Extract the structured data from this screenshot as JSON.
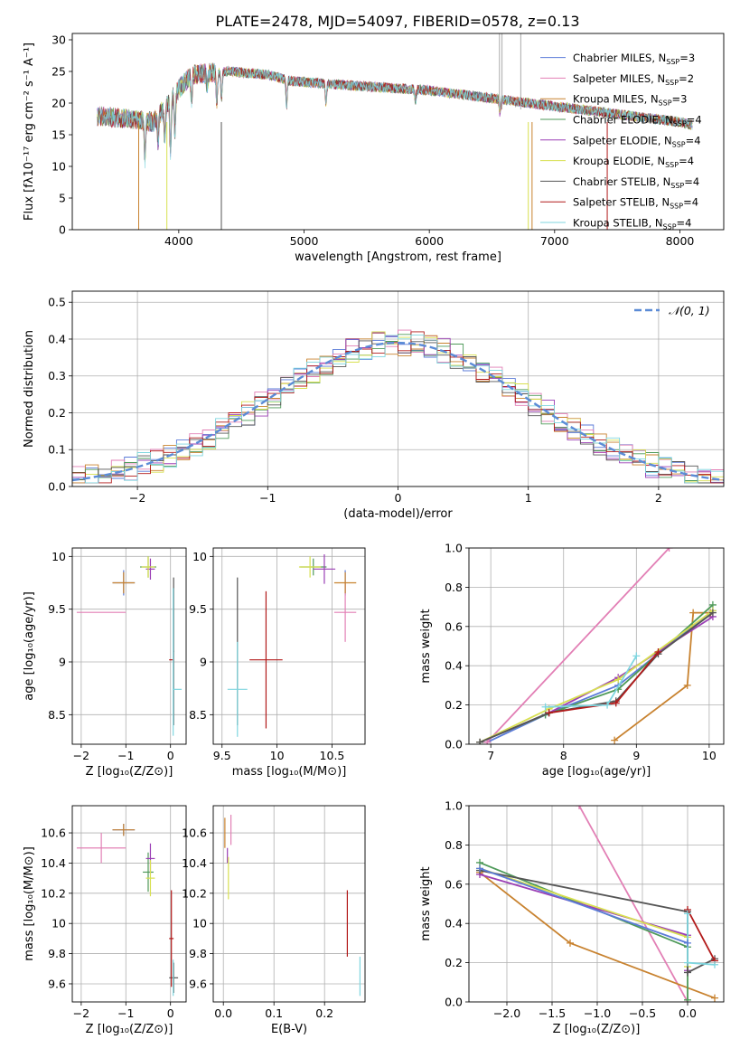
{
  "chart_data": [
    {
      "id": "spectrum",
      "type": "line",
      "title": "PLATE=2478, MJD=54097, FIBERID=0578, z=0.13",
      "xlabel": "wavelength [Angstrom, rest frame]",
      "ylabel": "Flux [fλ10⁻¹⁷ erg cm⁻² s⁻¹ A⁻¹]",
      "xlim": [
        3150,
        8350
      ],
      "ylim": [
        0,
        31
      ],
      "xticks": [
        4000,
        5000,
        6000,
        7000,
        8000
      ],
      "yticks": [
        0,
        5,
        10,
        15,
        20,
        25,
        30
      ],
      "grid": false,
      "legend": "right",
      "series": [
        {
          "name": "Chabrier MILES, N",
          "sub": "SSP",
          "suffix": "=3",
          "color": "#5b7bd8"
        },
        {
          "name": "Salpeter MILES, N",
          "sub": "SSP",
          "suffix": "=2",
          "color": "#e27fb5"
        },
        {
          "name": "Kroupa MILES, N",
          "sub": "SSP",
          "suffix": "=3",
          "color": "#c8822f"
        },
        {
          "name": "Chabrier ELODIE, N",
          "sub": "SSP",
          "suffix": "=4",
          "color": "#4f9a5a"
        },
        {
          "name": "Salpeter ELODIE, N",
          "sub": "SSP",
          "suffix": "=4",
          "color": "#9b3fb5"
        },
        {
          "name": "Kroupa ELODIE, N",
          "sub": "SSP",
          "suffix": "=4",
          "color": "#d8e050"
        },
        {
          "name": "Chabrier STELIB, N",
          "sub": "SSP",
          "suffix": "=4",
          "color": "#555555"
        },
        {
          "name": "Salpeter STELIB, N",
          "sub": "SSP",
          "suffix": "=4",
          "color": "#b21a1a"
        },
        {
          "name": "Kroupa STELIB, N",
          "sub": "SSP",
          "suffix": "=4",
          "color": "#7fd6df"
        }
      ],
      "data_envelope": {
        "x": [
          3350,
          3600,
          3800,
          3950,
          4100,
          4400,
          4700,
          4900,
          5200,
          5600,
          6000,
          6400,
          6800,
          7200,
          7600,
          8000,
          8100
        ],
        "y": [
          18,
          17.5,
          17,
          21,
          24.5,
          25,
          24.5,
          23.5,
          23,
          22.5,
          22,
          21,
          20,
          19,
          18,
          17,
          16.5
        ]
      }
    },
    {
      "id": "residuals",
      "type": "histogram",
      "xlabel": "(data-model)/error",
      "ylabel": "Normed distribution",
      "xlim": [
        -2.5,
        2.5
      ],
      "ylim": [
        0,
        0.53
      ],
      "xticks": [
        -2,
        -1,
        0,
        1,
        2
      ],
      "yticks": [
        0.0,
        0.1,
        0.2,
        0.3,
        0.4,
        0.5
      ],
      "grid": true,
      "legend": "top-right",
      "reference_curve": {
        "name": "𝒩(0, 1)",
        "color": "#5b8bd6",
        "mu": 0,
        "sigma": 1,
        "scale": 0.39
      },
      "bin_width": 0.1
    },
    {
      "id": "age-vs-Z",
      "type": "errorbar",
      "xlabel": "Z [log₁₀(Z/Z⊙)]",
      "ylabel": "age  [log₁₀(age/yr)]",
      "xlim": [
        -2.2,
        0.35
      ],
      "ylim": [
        8.22,
        10.08
      ],
      "xticks": [
        -2,
        -1,
        0
      ],
      "yticks": [
        8.5,
        9.0,
        9.5,
        10.0
      ],
      "grid": true,
      "points": [
        {
          "x": -1.05,
          "y": 9.75,
          "xerr": 0.25,
          "yerr": 0.12,
          "color": "#5b7bd8"
        },
        {
          "x": -1.55,
          "y": 9.47,
          "xerr": 0.55,
          "yerr": 0.0,
          "color": "#e27fb5"
        },
        {
          "x": -1.05,
          "y": 9.75,
          "xerr": 0.25,
          "yerr": 0.1,
          "color": "#c8822f"
        },
        {
          "x": -0.5,
          "y": 9.9,
          "xerr": 0.18,
          "yerr": 0.1,
          "color": "#4f9a5a"
        },
        {
          "x": -0.45,
          "y": 9.88,
          "xerr": 0.1,
          "yerr": 0.1,
          "color": "#9b3fb5"
        },
        {
          "x": -0.5,
          "y": 9.9,
          "xerr": 0.15,
          "yerr": 0.1,
          "color": "#d8e050"
        },
        {
          "x": 0.07,
          "y": 9.1,
          "xerr": 0.01,
          "yerr": 0.7,
          "color": "#555555"
        },
        {
          "x": 0.02,
          "y": 9.02,
          "xerr": 0.05,
          "yerr": 0.0,
          "color": "#b21a1a"
        },
        {
          "x": 0.15,
          "y": 8.74,
          "xerr": 0.1,
          "yerr": 0.0,
          "color": "#7fd6df"
        },
        {
          "x": 0.06,
          "y": 9.0,
          "xerr": 0.0,
          "yerr": 0.7,
          "color": "#7fd6df"
        }
      ]
    },
    {
      "id": "age-vs-mass",
      "type": "errorbar",
      "xlabel": "mass [log₁₀(M/M⊙)]",
      "ylabel": "",
      "xlim": [
        9.42,
        10.8
      ],
      "ylim": [
        8.22,
        10.08
      ],
      "xticks": [
        9.5,
        10.0,
        10.5
      ],
      "yticks": [
        8.5,
        9.0,
        9.5,
        10.0
      ],
      "grid": true,
      "points": [
        {
          "x": 10.62,
          "y": 9.75,
          "xerr": 0.0,
          "yerr": 0.12,
          "color": "#5b7bd8"
        },
        {
          "x": 10.62,
          "y": 9.47,
          "xerr": 0.1,
          "yerr": 0.28,
          "color": "#e27fb5"
        },
        {
          "x": 10.62,
          "y": 9.75,
          "xerr": 0.1,
          "yerr": 0.1,
          "color": "#c8822f"
        },
        {
          "x": 10.33,
          "y": 9.9,
          "xerr": 0.12,
          "yerr": 0.08,
          "color": "#4f9a5a"
        },
        {
          "x": 10.43,
          "y": 9.88,
          "xerr": 0.1,
          "yerr": 0.14,
          "color": "#9b3fb5"
        },
        {
          "x": 10.3,
          "y": 9.9,
          "xerr": 0.1,
          "yerr": 0.1,
          "color": "#d8e050"
        },
        {
          "x": 9.64,
          "y": 9.1,
          "xerr": 0.0,
          "yerr": 0.7,
          "color": "#555555"
        },
        {
          "x": 9.9,
          "y": 9.02,
          "xerr": 0.15,
          "yerr": 0.65,
          "color": "#b21a1a"
        },
        {
          "x": 9.64,
          "y": 8.74,
          "xerr": 0.09,
          "yerr": 0.45,
          "color": "#7fd6df"
        }
      ]
    },
    {
      "id": "weight-vs-age",
      "type": "line",
      "xlabel": "age  [log₁₀(age/yr)]",
      "ylabel": "mass weight",
      "xlim": [
        6.7,
        10.2
      ],
      "ylim": [
        0,
        1
      ],
      "xticks": [
        7,
        8,
        9,
        10
      ],
      "yticks": [
        0.0,
        0.2,
        0.4,
        0.6,
        0.8,
        1.0
      ],
      "grid": true,
      "series": [
        {
          "color": "#5b7bd8",
          "x": [
            6.95,
            7.75,
            8.75,
            10.05
          ],
          "y": [
            0.01,
            0.15,
            0.3,
            0.68
          ]
        },
        {
          "color": "#e27fb5",
          "x": [
            6.95,
            9.45
          ],
          "y": [
            0.01,
            1.0
          ]
        },
        {
          "color": "#c8822f",
          "x": [
            8.7,
            9.7,
            9.78,
            10.02
          ],
          "y": [
            0.02,
            0.3,
            0.67,
            0.67
          ]
        },
        {
          "color": "#4f9a5a",
          "x": [
            6.85,
            7.75,
            8.75,
            10.05
          ],
          "y": [
            0.01,
            0.15,
            0.28,
            0.71
          ]
        },
        {
          "color": "#9b3fb5",
          "x": [
            6.85,
            7.8,
            8.75,
            10.05
          ],
          "y": [
            0.01,
            0.16,
            0.34,
            0.65
          ]
        },
        {
          "color": "#d8e050",
          "x": [
            6.85,
            7.8,
            8.75,
            10.05
          ],
          "y": [
            0.01,
            0.18,
            0.33,
            0.68
          ]
        },
        {
          "color": "#555555",
          "x": [
            6.85,
            7.8,
            8.72,
            9.3,
            10.05
          ],
          "y": [
            0.01,
            0.16,
            0.22,
            0.46,
            0.67
          ]
        },
        {
          "color": "#b21a1a",
          "x": [
            7.8,
            8.72,
            9.3
          ],
          "y": [
            0.16,
            0.21,
            0.47
          ]
        },
        {
          "color": "#7fd6df",
          "x": [
            7.75,
            8.6,
            9.0
          ],
          "y": [
            0.19,
            0.2,
            0.45
          ]
        }
      ]
    },
    {
      "id": "mass-vs-Z",
      "type": "errorbar",
      "xlabel": "Z [log₁₀(Z/Z⊙)]",
      "ylabel": "mass [log₁₀(M/M⊙)]",
      "xlim": [
        -2.2,
        0.35
      ],
      "ylim": [
        9.48,
        10.78
      ],
      "xticks": [
        -2,
        -1,
        0
      ],
      "yticks": [
        9.6,
        9.8,
        10.0,
        10.2,
        10.4,
        10.6
      ],
      "grid": true,
      "points": [
        {
          "x": -1.05,
          "y": 10.62,
          "xerr": 0.25,
          "yerr": 0.04,
          "color": "#5b7bd8"
        },
        {
          "x": -1.55,
          "y": 10.5,
          "xerr": 0.55,
          "yerr": 0.1,
          "color": "#e27fb5"
        },
        {
          "x": -1.05,
          "y": 10.62,
          "xerr": 0.25,
          "yerr": 0.04,
          "color": "#c8822f"
        },
        {
          "x": -0.5,
          "y": 10.34,
          "xerr": 0.12,
          "yerr": 0.13,
          "color": "#4f9a5a"
        },
        {
          "x": -0.45,
          "y": 10.43,
          "xerr": 0.1,
          "yerr": 0.1,
          "color": "#9b3fb5"
        },
        {
          "x": -0.45,
          "y": 10.3,
          "xerr": 0.1,
          "yerr": 0.12,
          "color": "#d8e050"
        },
        {
          "x": 0.07,
          "y": 9.64,
          "xerr": 0.1,
          "yerr": 0.1,
          "color": "#555555"
        },
        {
          "x": 0.02,
          "y": 9.9,
          "xerr": 0.05,
          "yerr": 0.32,
          "color": "#b21a1a"
        },
        {
          "x": 0.06,
          "y": 9.64,
          "xerr": 0.0,
          "yerr": 0.12,
          "color": "#7fd6df"
        }
      ]
    },
    {
      "id": "mass-vs-EBV",
      "type": "errorbar",
      "xlabel": "E(B-V)",
      "ylabel": "",
      "xlim": [
        -0.02,
        0.28
      ],
      "ylim": [
        9.48,
        10.78
      ],
      "xticks": [
        0.0,
        0.1,
        0.2
      ],
      "yticks": [
        9.6,
        9.8,
        10.0,
        10.2,
        10.4,
        10.6
      ],
      "grid": true,
      "points": [
        {
          "x": 0.003,
          "y": 10.6,
          "xerr": 0.0,
          "yerr": 0.1,
          "color": "#c8822f"
        },
        {
          "x": 0.015,
          "y": 10.62,
          "xerr": 0.0,
          "yerr": 0.1,
          "color": "#e27fb5"
        },
        {
          "x": 0.008,
          "y": 10.45,
          "xerr": 0.0,
          "yerr": 0.05,
          "color": "#9b3fb5"
        },
        {
          "x": 0.01,
          "y": 10.3,
          "xerr": 0.0,
          "yerr": 0.14,
          "color": "#d8e050"
        },
        {
          "x": 0.245,
          "y": 10.0,
          "xerr": 0.0,
          "yerr": 0.22,
          "color": "#b21a1a"
        },
        {
          "x": 0.27,
          "y": 9.65,
          "xerr": 0.0,
          "yerr": 0.13,
          "color": "#7fd6df"
        }
      ]
    },
    {
      "id": "weight-vs-Z",
      "type": "line",
      "xlabel": "Z [log₁₀(Z/Z⊙)]",
      "ylabel": "mass weight",
      "xlim": [
        -2.42,
        0.4
      ],
      "ylim": [
        0,
        1
      ],
      "xticks": [
        -2.0,
        -1.5,
        -1.0,
        -0.5,
        0.0
      ],
      "yticks": [
        0.0,
        0.2,
        0.4,
        0.6,
        0.8,
        1.0
      ],
      "xticklabels": [
        "−2.0",
        "−1.5",
        "−1.0",
        "−0.5",
        "0.0"
      ],
      "grid": true,
      "series": [
        {
          "color": "#e27fb5",
          "x": [
            -1.2,
            0.0
          ],
          "y": [
            1.0,
            0.0
          ]
        },
        {
          "color": "#c8822f",
          "x": [
            -2.3,
            -1.3,
            0.3
          ],
          "y": [
            0.66,
            0.3,
            0.02
          ]
        },
        {
          "color": "#4f9a5a",
          "x": [
            -2.3,
            0.0,
            0.0
          ],
          "y": [
            0.71,
            0.28,
            0.01
          ]
        },
        {
          "color": "#9b3fb5",
          "x": [
            -2.3,
            0.0,
            0.0
          ],
          "y": [
            0.65,
            0.34,
            0.16
          ]
        },
        {
          "color": "#d8e050",
          "x": [
            -2.3,
            0.0,
            0.0
          ],
          "y": [
            0.68,
            0.33,
            0.18
          ]
        },
        {
          "color": "#555555",
          "x": [
            -2.3,
            0.0,
            0.0,
            0.3
          ],
          "y": [
            0.67,
            0.46,
            0.15,
            0.22
          ]
        },
        {
          "color": "#b21a1a",
          "x": [
            0.0,
            0.3
          ],
          "y": [
            0.47,
            0.21
          ]
        },
        {
          "color": "#7fd6df",
          "x": [
            0.0,
            0.0,
            0.3
          ],
          "y": [
            0.45,
            0.2,
            0.19
          ]
        },
        {
          "color": "#5b7bd8",
          "x": [
            -2.3,
            0.0
          ],
          "y": [
            0.68,
            0.3
          ]
        }
      ]
    }
  ]
}
